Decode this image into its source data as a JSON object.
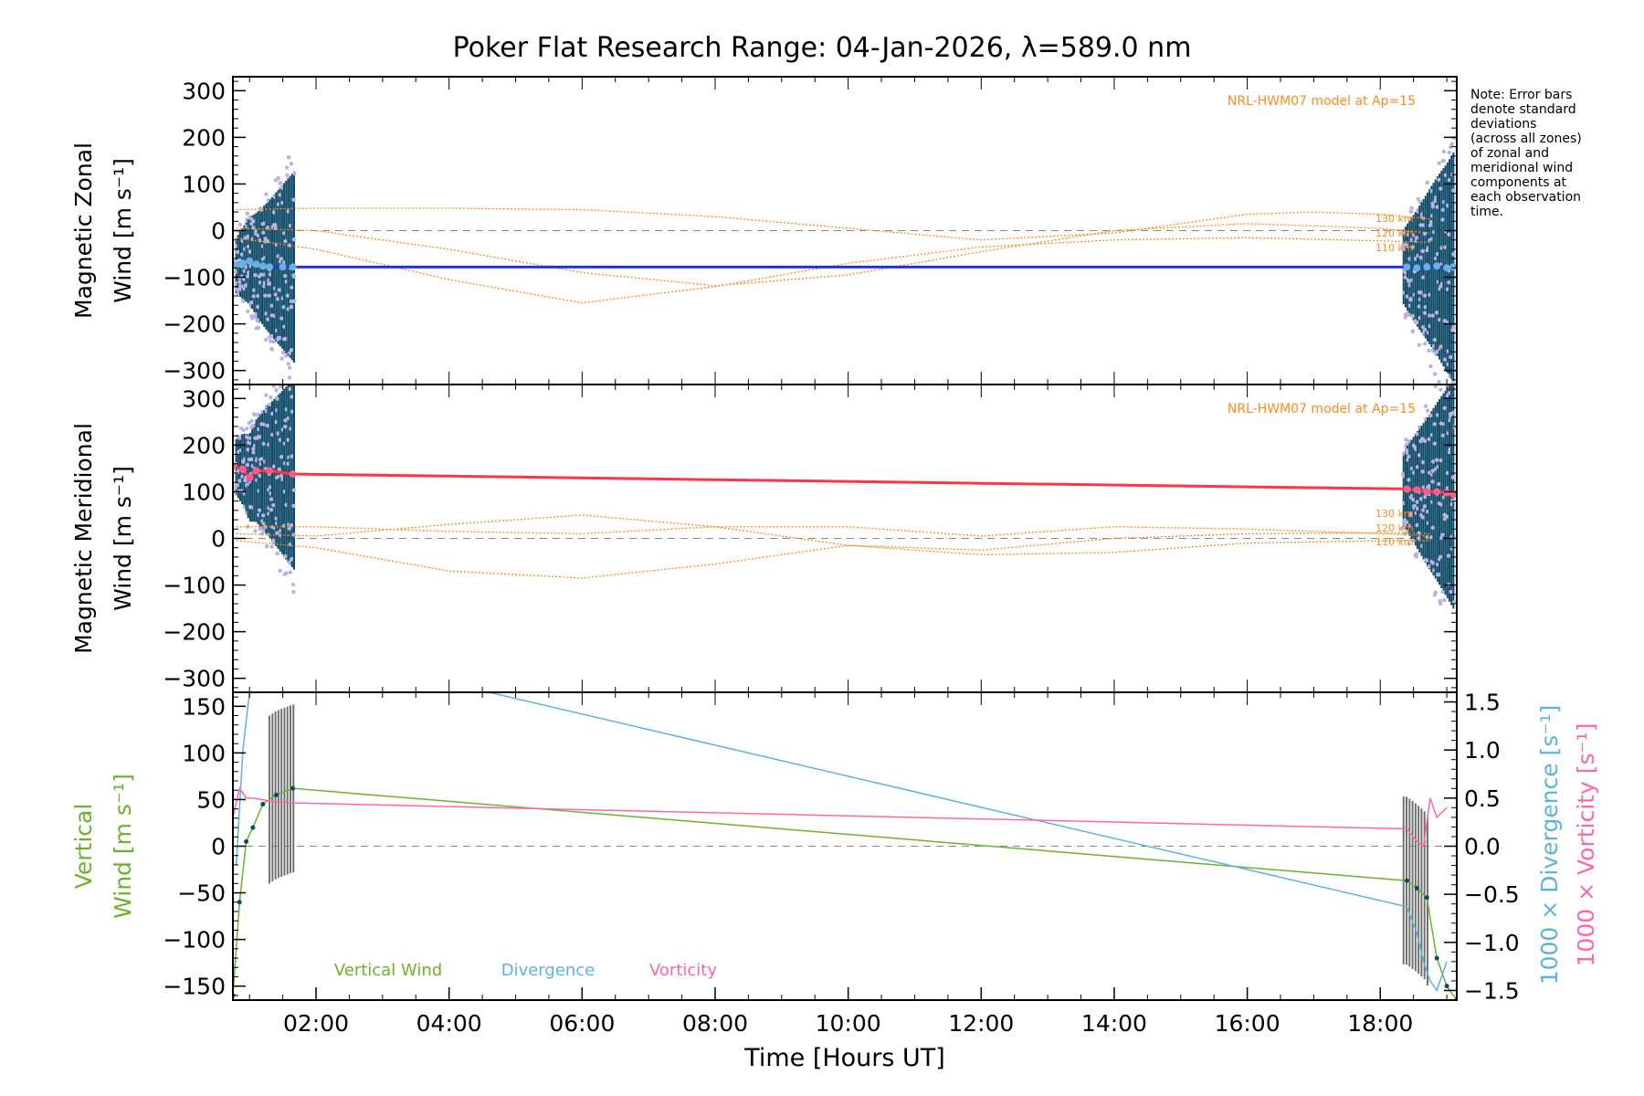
{
  "title": "Poker Flat Research Range: 04-Jan-2026, λ=589.0 nm",
  "note": [
    "Note: Error bars",
    "denote standard",
    "deviations",
    "(across all zones)",
    "of zonal and",
    "meridional wind",
    "components at",
    "each observation",
    "time."
  ],
  "colors": {
    "zonal": "#2233dd",
    "zonal_obs": "#66b3e0",
    "meridional": "#ff3344",
    "meridional_obs": "#ff5c8a",
    "model": "#ff8a1e",
    "error_bar": "#0d4a66",
    "zone_points": "#b9b3e3",
    "vertical": "#6ab42d",
    "divergence": "#5db3e0",
    "vorticity": "#ff66aa",
    "vertical_err": "#707070"
  },
  "chart_data": [
    {
      "type": "line",
      "panel": "zonal",
      "ylabel_lines": [
        "Magnetic Zonal",
        "Wind [m s⁻¹]"
      ],
      "xlim": [
        0.75,
        19.15
      ],
      "ylim": [
        -330,
        330
      ],
      "yticks": [
        300,
        200,
        100,
        0,
        -100,
        -200,
        -300
      ],
      "model_label": "NRL-HWM07 model at Ap=15",
      "model_level_labels": [
        "130 km",
        "120 km",
        "110 km"
      ],
      "series": [
        {
          "name": "",
          "x": [
            0.8,
            0.9,
            1.0,
            1.1,
            1.2,
            1.3,
            1.5,
            1.65,
            18.4,
            18.55,
            18.7,
            18.85,
            19.0,
            19.1
          ],
          "values": [
            -75,
            -70,
            -65,
            -72,
            -76,
            -78,
            -78,
            -78,
            -78,
            -80,
            -78,
            -76,
            -80,
            -78
          ]
        },
        {
          "name": "130 km",
          "x": [
            0.8,
            2,
            4,
            6,
            8,
            10,
            12,
            14,
            16,
            17,
            18,
            18.75
          ],
          "values": [
            45,
            48,
            48,
            45,
            30,
            5,
            -20,
            -5,
            35,
            40,
            35,
            25
          ]
        },
        {
          "name": "120 km",
          "x": [
            0.8,
            2,
            4,
            6,
            8,
            10,
            12,
            14,
            16,
            18,
            18.75
          ],
          "values": [
            5,
            0,
            -40,
            -90,
            -118,
            -95,
            -45,
            0,
            15,
            5,
            -5
          ]
        },
        {
          "name": "110 km",
          "x": [
            0.8,
            2,
            4,
            6,
            8,
            10,
            12,
            14,
            16,
            18,
            18.75
          ],
          "values": [
            -15,
            -40,
            -105,
            -155,
            -120,
            -70,
            -35,
            -20,
            -15,
            -22,
            -25
          ]
        }
      ]
    },
    {
      "type": "line",
      "panel": "meridional",
      "ylabel_lines": [
        "Magnetic Meridional",
        "Wind [m s⁻¹]"
      ],
      "xlim": [
        0.75,
        19.15
      ],
      "ylim": [
        -330,
        330
      ],
      "yticks": [
        300,
        200,
        100,
        0,
        -100,
        -200,
        -300
      ],
      "model_label": "NRL-HWM07 model at Ap=15",
      "model_level_labels": [
        "130 km",
        "120 km",
        "110 km"
      ],
      "series": [
        {
          "name": "",
          "x": [
            0.75,
            0.9,
            1.0,
            1.1,
            1.3,
            1.65,
            18.4,
            18.55,
            18.7,
            18.85,
            19.0,
            19.1
          ],
          "values": [
            155,
            148,
            130,
            145,
            145,
            138,
            106,
            104,
            100,
            100,
            98,
            95
          ]
        },
        {
          "name": "130 km",
          "x": [
            0.8,
            2,
            4,
            6,
            8,
            10,
            12,
            14,
            16,
            18,
            18.75
          ],
          "values": [
            25,
            25,
            15,
            10,
            25,
            25,
            5,
            25,
            20,
            10,
            5
          ]
        },
        {
          "name": "120 km",
          "x": [
            0.8,
            2,
            4,
            6,
            8,
            10,
            12,
            14,
            16,
            18,
            18.75
          ],
          "values": [
            10,
            5,
            30,
            50,
            25,
            -15,
            -25,
            0,
            10,
            12,
            10
          ]
        },
        {
          "name": "110 km",
          "x": [
            0.8,
            2,
            4,
            6,
            8,
            10,
            12,
            14,
            16,
            18,
            18.75
          ],
          "values": [
            -5,
            -20,
            -70,
            -85,
            -55,
            -15,
            -35,
            -30,
            -10,
            -5,
            -5
          ]
        }
      ]
    },
    {
      "type": "line",
      "panel": "vertical",
      "ylabel_lines": [
        "Vertical",
        "Wind [m s⁻¹]"
      ],
      "y2label_lines": [
        "1000 × Divergence [s⁻¹]",
        "1000 × Vorticity [s⁻¹]"
      ],
      "xlabel": "Time [Hours UT]",
      "xticks": [
        "02:00",
        "04:00",
        "06:00",
        "08:00",
        "10:00",
        "12:00",
        "14:00",
        "16:00",
        "18:00"
      ],
      "xtick_values": [
        2,
        4,
        6,
        8,
        10,
        12,
        14,
        16,
        18
      ],
      "xlim": [
        0.75,
        19.15
      ],
      "ylim": [
        -165,
        165
      ],
      "yticks": [
        150,
        100,
        50,
        0,
        -50,
        -100,
        -150
      ],
      "y2lim": [
        -1.6,
        1.6
      ],
      "y2ticks": [
        "1.5",
        "1.0",
        "0.5",
        "0.0",
        "−0.5",
        "−1.0",
        "−1.5"
      ],
      "y2tick_values": [
        1.5,
        1.0,
        0.5,
        0.0,
        -0.5,
        -1.0,
        -1.5
      ],
      "legend": [
        "Vertical Wind",
        "Divergence",
        "Vorticity"
      ],
      "series": [
        {
          "name": "Vertical Wind",
          "axis": "left",
          "x": [
            0.75,
            0.85,
            0.95,
            1.05,
            1.2,
            1.4,
            1.65,
            18.4,
            18.55,
            18.7,
            18.85,
            19.0,
            19.15
          ],
          "values": [
            -160,
            -60,
            5,
            20,
            45,
            55,
            62,
            -37,
            -45,
            -55,
            -120,
            -150,
            -165
          ]
        },
        {
          "name": "Divergence",
          "axis": "right",
          "x": [
            0.8,
            0.9,
            1.0,
            4.6,
            18.4,
            18.55,
            18.65,
            18.75,
            18.85,
            19.0
          ],
          "values": [
            -0.2,
            1.0,
            1.6,
            1.6,
            -0.63,
            -0.9,
            -1.2,
            -1.4,
            -1.5,
            -1.2
          ]
        },
        {
          "name": "Vorticity",
          "axis": "right",
          "x": [
            0.75,
            0.85,
            0.95,
            1.05,
            1.3,
            1.65,
            18.4,
            18.55,
            18.65,
            18.75,
            18.85,
            19.0
          ],
          "values": [
            0.3,
            0.6,
            0.5,
            0.5,
            0.47,
            0.45,
            0.18,
            0.05,
            0.0,
            0.5,
            0.3,
            0.4
          ]
        }
      ]
    }
  ]
}
